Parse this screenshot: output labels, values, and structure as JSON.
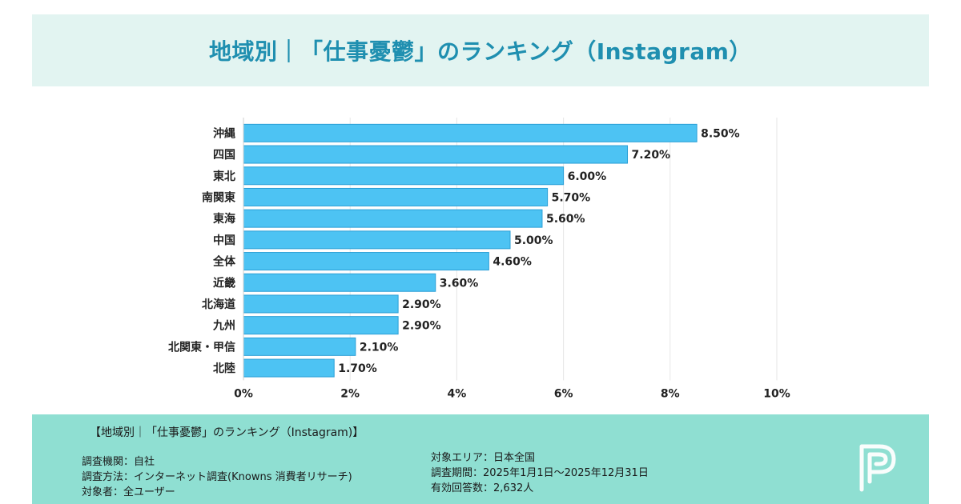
{
  "header": {
    "title": "地域別｜「仕事憂鬱」のランキング（Instagram）"
  },
  "chart_data": {
    "type": "bar",
    "orientation": "horizontal",
    "categories": [
      "沖縄",
      "四国",
      "東北",
      "南関東",
      "東海",
      "中国",
      "全体",
      "近畿",
      "北海道",
      "九州",
      "北関東・甲信",
      "北陸"
    ],
    "values": [
      8.5,
      7.2,
      6.0,
      5.7,
      5.6,
      5.0,
      4.6,
      3.6,
      2.9,
      2.9,
      2.1,
      1.7
    ],
    "value_labels": [
      "8.50%",
      "7.20%",
      "6.00%",
      "5.70%",
      "5.60%",
      "5.00%",
      "4.60%",
      "3.60%",
      "2.90%",
      "2.90%",
      "2.10%",
      "1.70%"
    ],
    "x_ticks": [
      0,
      2,
      4,
      6,
      8,
      10
    ],
    "x_tick_labels": [
      "0%",
      "2%",
      "4%",
      "6%",
      "8%",
      "10%"
    ],
    "xlim": [
      0,
      10
    ],
    "grid": "vertical",
    "bar_color": "#4dc3f3",
    "bar_edge_color": "#2a9fd6",
    "grid_color": "#e6e6e6"
  },
  "footer": {
    "title": "【地域別｜「仕事憂鬱」のランキング（Instagram)】",
    "left": [
      {
        "label": "調査機関",
        "sep": "：",
        "value": "自社"
      },
      {
        "label": "調査方法",
        "sep": "：",
        "value": "インターネット調査(Knowns 消費者リサーチ)"
      },
      {
        "label": "対象者",
        "sep": "：",
        "value": "全ユーザー"
      }
    ],
    "right": [
      {
        "label": "対象エリア",
        "sep": "：",
        "value": "日本全国"
      },
      {
        "label": "調査期間",
        "sep": "：",
        "value": "2025年1月1日〜2025年12月31日"
      },
      {
        "label": "有効回答数",
        "sep": "：",
        "value": "2,632人"
      }
    ]
  },
  "colors": {
    "header_bg": "#e2f4f1",
    "header_title": "#1f8fb0",
    "footer_bg": "#8fdfd2"
  },
  "logo": {
    "icon": "p-logo-icon"
  }
}
